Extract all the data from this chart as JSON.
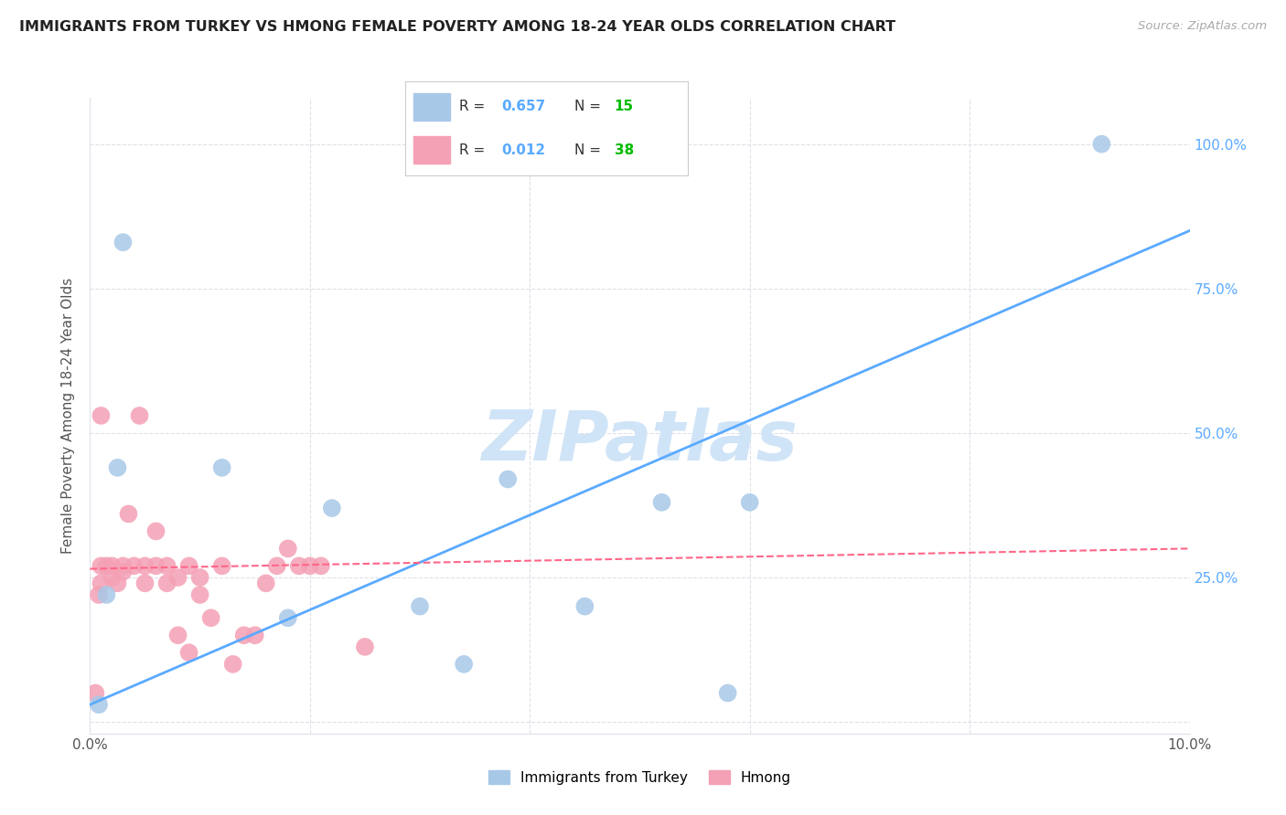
{
  "title": "IMMIGRANTS FROM TURKEY VS HMONG FEMALE POVERTY AMONG 18-24 YEAR OLDS CORRELATION CHART",
  "source": "Source: ZipAtlas.com",
  "ylabel": "Female Poverty Among 18-24 Year Olds",
  "xmin": 0.0,
  "xmax": 0.1,
  "ymin": -0.02,
  "ymax": 1.08,
  "xticks": [
    0.0,
    0.02,
    0.04,
    0.06,
    0.08,
    0.1
  ],
  "xtick_labels": [
    "0.0%",
    "",
    "",
    "",
    "",
    "10.0%"
  ],
  "yticks": [
    0.0,
    0.25,
    0.5,
    0.75,
    1.0
  ],
  "ytick_labels": [
    "",
    "25.0%",
    "50.0%",
    "75.0%",
    "100.0%"
  ],
  "turkey_color": "#a8c8e8",
  "hmong_color": "#f4a0b5",
  "turkey_line_color": "#5aaaff",
  "hmong_line_color": "#ff6688",
  "ytick_color": "#5aaaff",
  "watermark_text": "ZIPatlas",
  "watermark_color": "#d0e4f7",
  "legend_turkey_r": "0.657",
  "legend_turkey_n": "15",
  "legend_hmong_r": "0.012",
  "legend_hmong_n": "38",
  "r_color": "#5aaaff",
  "n_color": "#00bb00",
  "turkey_x": [
    0.0008,
    0.0015,
    0.0025,
    0.003,
    0.012,
    0.018,
    0.022,
    0.03,
    0.034,
    0.038,
    0.045,
    0.052,
    0.058,
    0.06,
    0.092
  ],
  "turkey_y": [
    0.03,
    0.22,
    0.44,
    0.83,
    0.44,
    0.18,
    0.37,
    0.2,
    0.1,
    0.42,
    0.2,
    0.38,
    0.05,
    0.38,
    1.0
  ],
  "hmong_x": [
    0.0005,
    0.0008,
    0.001,
    0.001,
    0.001,
    0.0015,
    0.002,
    0.002,
    0.0025,
    0.003,
    0.003,
    0.0035,
    0.004,
    0.0045,
    0.005,
    0.005,
    0.006,
    0.006,
    0.007,
    0.007,
    0.008,
    0.008,
    0.009,
    0.009,
    0.01,
    0.01,
    0.011,
    0.012,
    0.013,
    0.014,
    0.015,
    0.016,
    0.017,
    0.018,
    0.019,
    0.02,
    0.021,
    0.025
  ],
  "hmong_y": [
    0.05,
    0.22,
    0.24,
    0.27,
    0.53,
    0.27,
    0.25,
    0.27,
    0.24,
    0.26,
    0.27,
    0.36,
    0.27,
    0.53,
    0.24,
    0.27,
    0.33,
    0.27,
    0.24,
    0.27,
    0.15,
    0.25,
    0.12,
    0.27,
    0.22,
    0.25,
    0.18,
    0.27,
    0.1,
    0.15,
    0.15,
    0.24,
    0.27,
    0.3,
    0.27,
    0.27,
    0.27,
    0.13
  ],
  "background_color": "#ffffff",
  "grid_color": "#dde0e8",
  "turkey_line_x0": 0.0,
  "turkey_line_y0": 0.03,
  "turkey_line_x1": 0.1,
  "turkey_line_y1": 0.85,
  "hmong_line_x0": 0.0,
  "hmong_line_y0": 0.265,
  "hmong_line_x1": 0.1,
  "hmong_line_y1": 0.3
}
